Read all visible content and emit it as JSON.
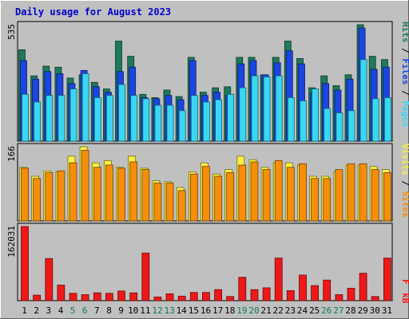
{
  "chart_data": [
    {
      "type": "bar",
      "title": "Daily usage for August 2023",
      "panel": "hits-files-pages",
      "y_max_label": "535",
      "ylim": [
        0,
        535
      ],
      "categories": [
        "1",
        "2",
        "3",
        "4",
        "5",
        "6",
        "7",
        "8",
        "9",
        "10",
        "11",
        "12",
        "13",
        "14",
        "15",
        "16",
        "17",
        "18",
        "19",
        "20",
        "21",
        "22",
        "23",
        "24",
        "25",
        "26",
        "27",
        "28",
        "29",
        "30",
        "31"
      ],
      "weekend_days": [
        "5",
        "6",
        "12",
        "13",
        "19",
        "20",
        "26",
        "27"
      ],
      "side_label": [
        "Pages",
        "/",
        "Files",
        "/",
        "Hits"
      ],
      "series": [
        {
          "name": "Hits",
          "color": "#1e7a5a",
          "values": [
            420,
            300,
            345,
            340,
            290,
            305,
            270,
            240,
            460,
            390,
            215,
            200,
            235,
            205,
            385,
            225,
            245,
            250,
            385,
            385,
            305,
            385,
            460,
            380,
            245,
            300,
            255,
            305,
            535,
            390,
            375
          ]
        },
        {
          "name": "Files",
          "color": "#1b45e0",
          "values": [
            370,
            285,
            320,
            310,
            265,
            325,
            250,
            225,
            320,
            340,
            200,
            195,
            210,
            190,
            370,
            210,
            225,
            210,
            355,
            370,
            305,
            360,
            415,
            355,
            220,
            265,
            235,
            285,
            520,
            330,
            340
          ]
        },
        {
          "name": "Pages",
          "color": "#38d8f4",
          "values": [
            215,
            180,
            210,
            210,
            240,
            310,
            200,
            210,
            260,
            210,
            195,
            165,
            165,
            140,
            210,
            180,
            190,
            215,
            245,
            300,
            295,
            300,
            200,
            185,
            240,
            150,
            130,
            140,
            375,
            195,
            200
          ]
        }
      ]
    },
    {
      "type": "bar",
      "panel": "visits-sites",
      "y_max_label": "166",
      "ylim": [
        0,
        166
      ],
      "categories": [
        "1",
        "2",
        "3",
        "4",
        "5",
        "6",
        "7",
        "8",
        "9",
        "10",
        "11",
        "12",
        "13",
        "14",
        "15",
        "16",
        "17",
        "18",
        "19",
        "20",
        "21",
        "22",
        "23",
        "24",
        "25",
        "26",
        "27",
        "28",
        "29",
        "30",
        "31"
      ],
      "side_label": [
        "Sites",
        "/",
        "Visits"
      ],
      "series": [
        {
          "name": "Visits",
          "color": "#f8f040",
          "values": [
            120,
            100,
            112,
            110,
            145,
            166,
            130,
            135,
            120,
            145,
            118,
            90,
            88,
            75,
            110,
            130,
            105,
            115,
            145,
            137,
            120,
            130,
            130,
            125,
            100,
            100,
            110,
            125,
            125,
            122,
            115
          ]
        },
        {
          "name": "Sites",
          "color": "#f58e0a",
          "values": [
            118,
            95,
            108,
            112,
            130,
            158,
            120,
            125,
            118,
            132,
            115,
            85,
            85,
            68,
            105,
            122,
            100,
            108,
            125,
            132,
            115,
            135,
            120,
            128,
            95,
            95,
            115,
            128,
            128,
            115,
            108
          ]
        }
      ]
    },
    {
      "type": "bar",
      "panel": "kbytes",
      "y_max_label": "162031",
      "ylim": [
        0,
        162031
      ],
      "categories": [
        "1",
        "2",
        "3",
        "4",
        "5",
        "6",
        "7",
        "8",
        "9",
        "10",
        "11",
        "12",
        "13",
        "14",
        "15",
        "16",
        "17",
        "18",
        "19",
        "20",
        "21",
        "22",
        "23",
        "24",
        "25",
        "26",
        "27",
        "28",
        "29",
        "30",
        "31"
      ],
      "side_label": [
        "kB",
        "F"
      ],
      "series": [
        {
          "name": "kB F",
          "color": "#ee1818",
          "values": [
            162031,
            12000,
            92000,
            34000,
            16000,
            13000,
            17000,
            16000,
            21000,
            17000,
            104000,
            8000,
            15000,
            10000,
            18000,
            18000,
            24000,
            9000,
            51000,
            24000,
            28000,
            93000,
            22000,
            56000,
            33000,
            45000,
            13000,
            27000,
            60000,
            9000,
            93000
          ]
        }
      ]
    }
  ]
}
